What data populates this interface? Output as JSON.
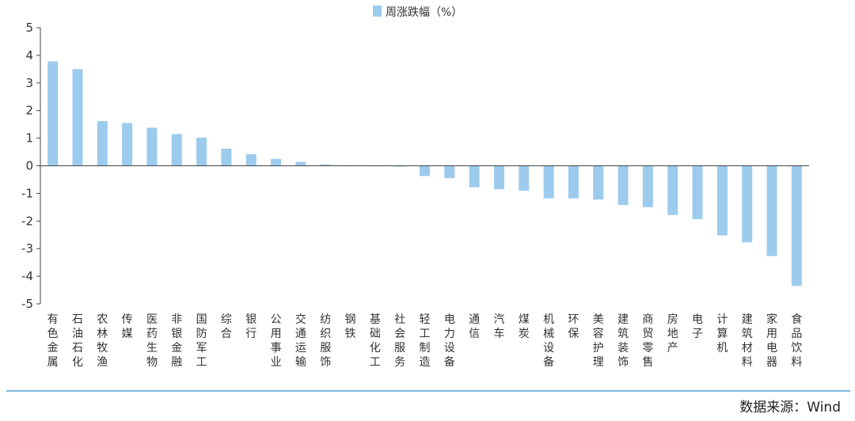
{
  "chart_data": {
    "type": "bar",
    "title": "",
    "xlabel": "",
    "ylabel": "",
    "ylim": [
      -5,
      5
    ],
    "yticks": [
      5,
      4,
      3,
      2,
      1,
      0,
      -1,
      -2,
      -3,
      -4,
      -5
    ],
    "legend": {
      "position": "top-center",
      "label": "周涨跌幅（%）"
    },
    "grid": false,
    "bar_color": "#9ccbee",
    "categories": [
      "有色金属",
      "石油石化",
      "农林牧渔",
      "传媒",
      "医药生物",
      "非银金融",
      "国防军工",
      "综合",
      "银行",
      "公用事业",
      "交通运输",
      "纺织服饰",
      "钢铁",
      "基础化工",
      "社会服务",
      "轻工制造",
      "电力设备",
      "通信",
      "汽车",
      "煤炭",
      "机械设备",
      "环保",
      "美容护理",
      "建筑装饰",
      "商贸零售",
      "房地产",
      "电子",
      "计算机",
      "建筑材料",
      "家用电器",
      "食品饮料"
    ],
    "series": [
      {
        "name": "周涨跌幅（%）",
        "values": [
          3.78,
          3.5,
          1.62,
          1.55,
          1.38,
          1.15,
          1.02,
          0.62,
          0.42,
          0.25,
          0.14,
          0.05,
          0.02,
          -0.01,
          -0.03,
          -0.37,
          -0.45,
          -0.78,
          -0.85,
          -0.9,
          -1.18,
          -1.18,
          -1.22,
          -1.42,
          -1.5,
          -1.78,
          -1.93,
          -2.52,
          -2.77,
          -3.27,
          -4.35
        ]
      }
    ]
  },
  "source": {
    "text": "数据来源：Wind"
  }
}
